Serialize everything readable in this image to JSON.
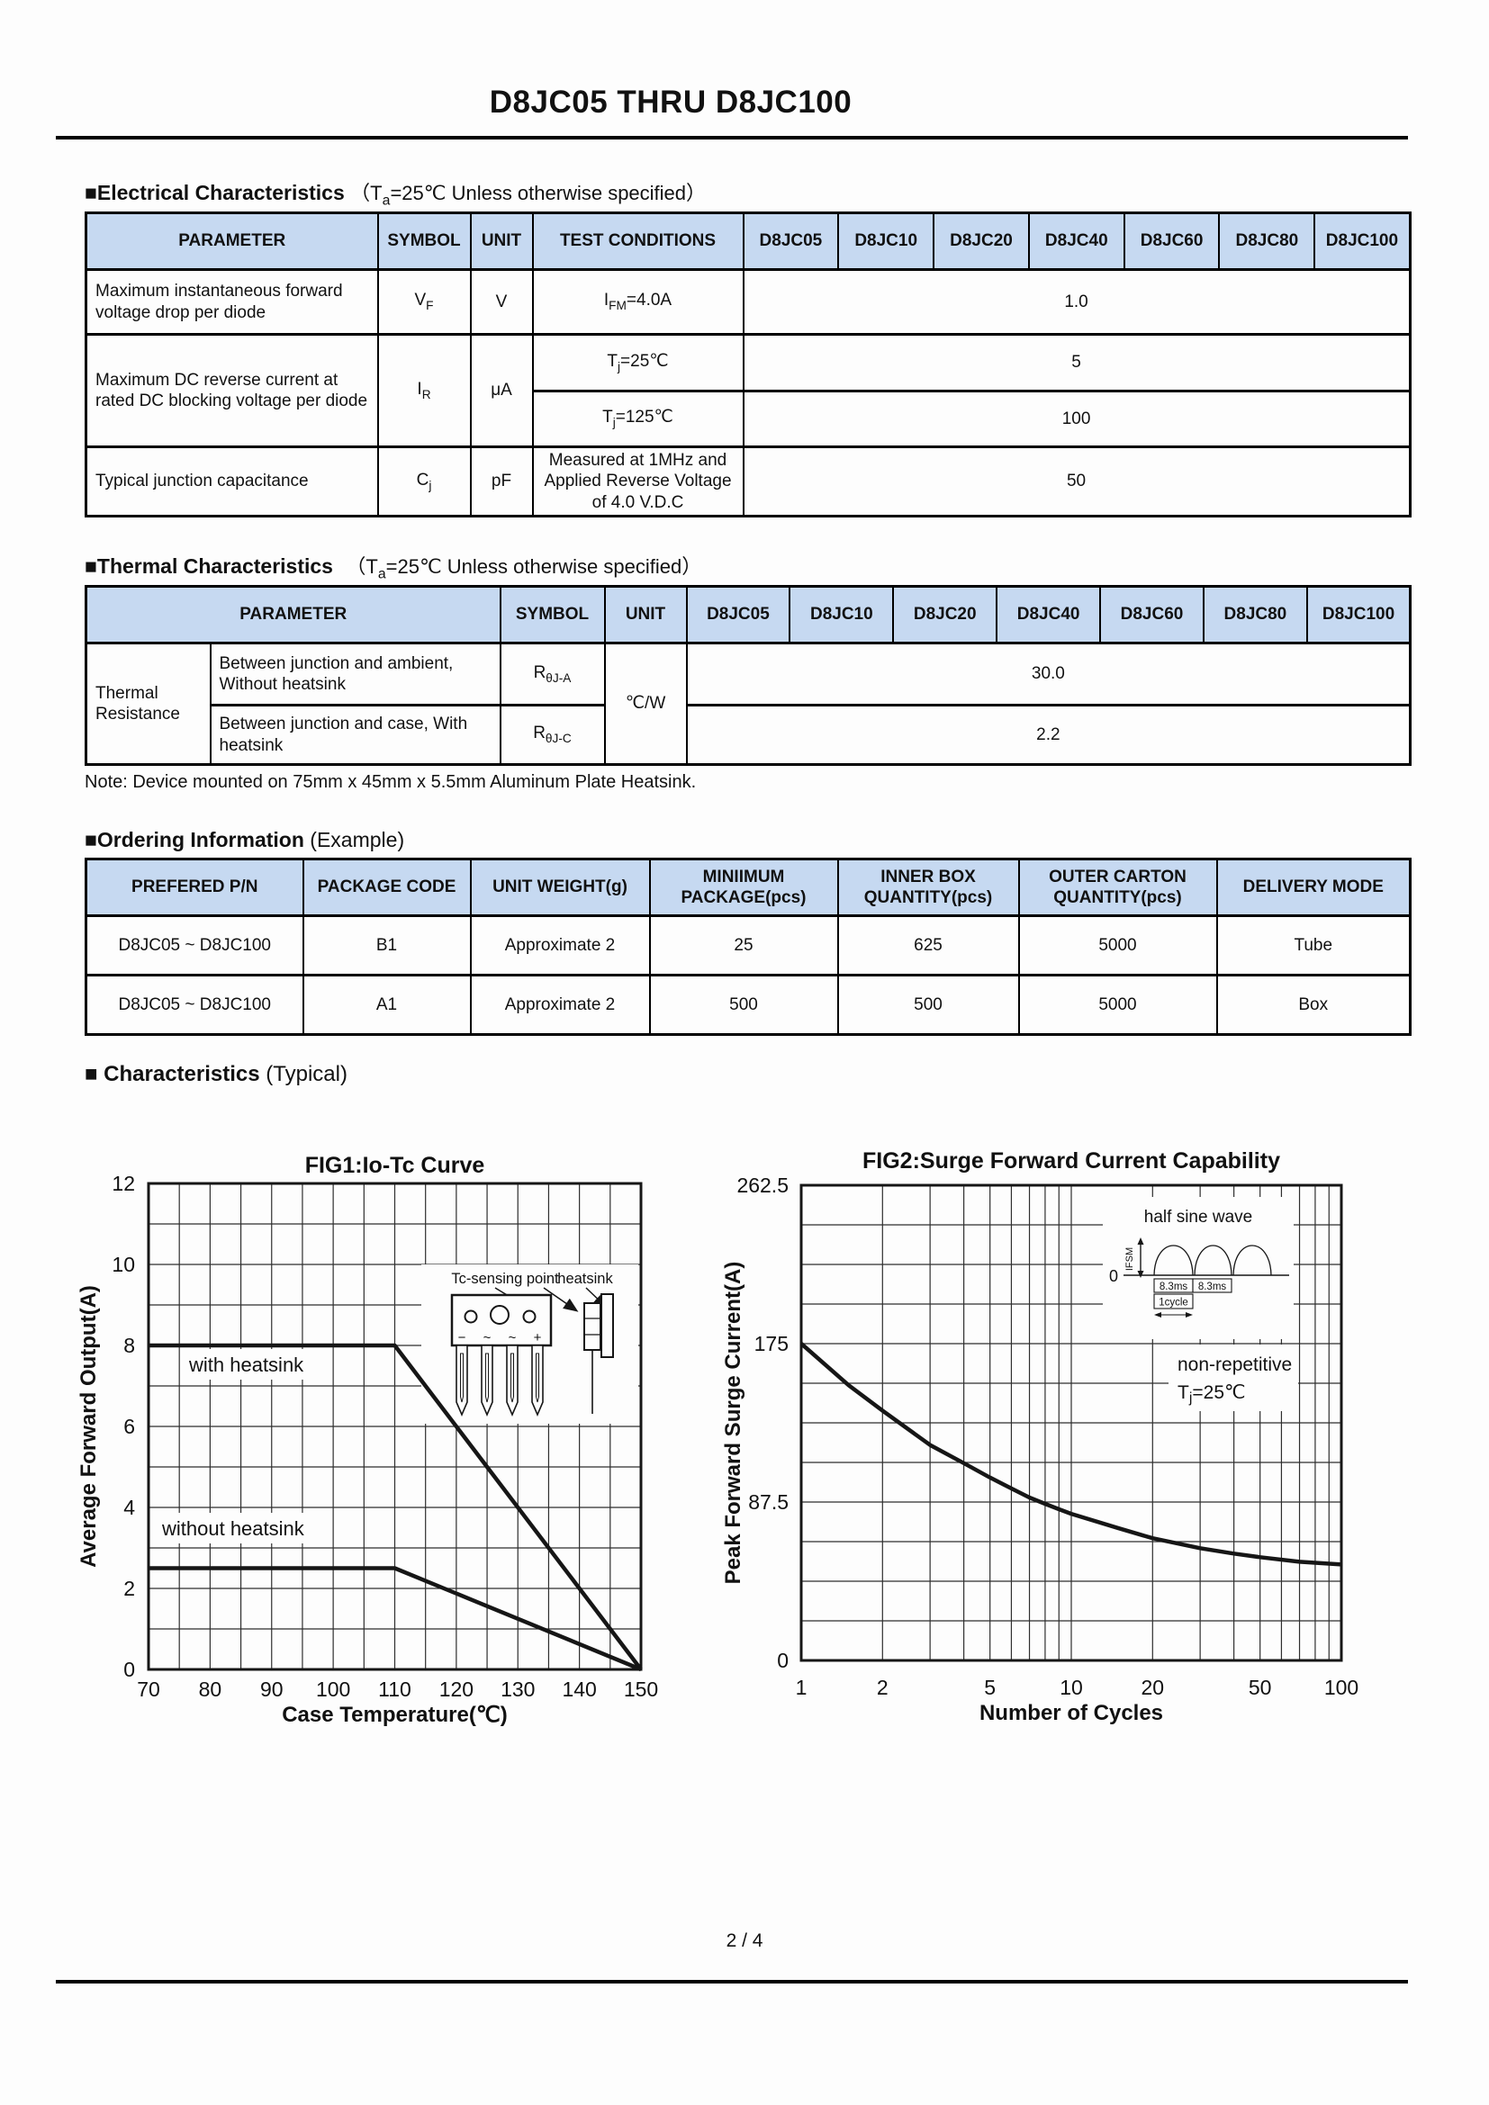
{
  "page": {
    "title": "D8JC05 THRU D8JC100",
    "footer": "2 / 4"
  },
  "colors": {
    "table_header_fill": "#c6d9f1",
    "ink": "#161616",
    "grid": "#2e2e2e"
  },
  "sections": {
    "electrical": {
      "heading_bold": "■Electrical Characteristics",
      "cond_pre": "（T",
      "cond_sub": "a",
      "cond_post": "=25℃ Unless otherwise specified）"
    },
    "thermal": {
      "heading_bold": "■Thermal Characteristics",
      "cond_pre": "（T",
      "cond_sub": "a",
      "cond_post": "=25℃ Unless otherwise specified）"
    },
    "ordering": {
      "heading_bold": "■Ordering Information",
      "heading_rest": " (Example)"
    },
    "characteristics": {
      "heading_bold": "■ Characteristics",
      "heading_rest": " (Typical)"
    }
  },
  "elec_table": {
    "headers": [
      "PARAMETER",
      "SYMBOL",
      "UNIT",
      "TEST CONDITIONS",
      "D8JC05",
      "D8JC10",
      "D8JC20",
      "D8JC40",
      "D8JC60",
      "D8JC80",
      "D8JC100"
    ],
    "row_vf": {
      "param": "Maximum instantaneous forward voltage drop per diode",
      "sym_pre": "V",
      "sym_sub": "F",
      "unit": "V",
      "cond_pre": "I",
      "cond_sub": "FM",
      "cond_post": "=4.0A",
      "value": "1.0"
    },
    "row_ir": {
      "param": "Maximum DC reverse current at rated DC blocking voltage per diode",
      "sym_pre": "I",
      "sym_sub": "R",
      "unit": "μA",
      "cond1_pre": "T",
      "cond1_sub": "j",
      "cond1_post": "=25℃",
      "value1": "5",
      "cond2_pre": "T",
      "cond2_sub": "j",
      "cond2_post": "=125℃",
      "value2": "100"
    },
    "row_cj": {
      "param": "Typical junction capacitance",
      "sym_pre": "C",
      "sym_sub": "j",
      "unit": "pF",
      "cond": "Measured at 1MHz and Applied Reverse Voltage of 4.0 V.D.C",
      "value": "50"
    }
  },
  "thermal_table": {
    "headers": [
      "PARAMETER",
      "SYMBOL",
      "UNIT",
      "D8JC05",
      "D8JC10",
      "D8JC20",
      "D8JC40",
      "D8JC60",
      "D8JC80",
      "D8JC100"
    ],
    "group": "Thermal Resistance",
    "unit": "℃/W",
    "row1": {
      "param": "Between junction and ambient, Without heatsink",
      "sym_pre": "R",
      "sym_sub": "θJ-A",
      "value": "30.0"
    },
    "row2": {
      "param": "Between junction and case, With heatsink",
      "sym_pre": "R",
      "sym_sub": "θJ-C",
      "value": "2.2"
    },
    "note": "Note: Device mounted on 75mm x 45mm x 5.5mm Aluminum Plate Heatsink."
  },
  "ordering_table": {
    "headers": [
      "PREFERED P/N",
      "PACKAGE CODE",
      "UNIT WEIGHT(g)",
      "MINIIMUM PACKAGE(pcs)",
      "INNER BOX QUANTITY(pcs)",
      "OUTER CARTON QUANTITY(pcs)",
      "DELIVERY MODE"
    ],
    "rows": [
      [
        "D8JC05 ~ D8JC100",
        "B1",
        "Approximate 2",
        "25",
        "625",
        "5000",
        "Tube"
      ],
      [
        "D8JC05 ~ D8JC100",
        "A1",
        "Approximate 2",
        "500",
        "500",
        "5000",
        "Box"
      ]
    ]
  },
  "chart_data": [
    {
      "type": "line",
      "title": "FIG1:Io-Tc Curve",
      "xlabel": "Case Temperature(℃)",
      "ylabel": "Average Forward Output(A)",
      "x_min": 70,
      "x_max": 150,
      "x_grid_step": 5,
      "y_min": 0,
      "y_max": 12,
      "y_grid_step": 1,
      "x_tick_labels": [
        70,
        80,
        90,
        100,
        110,
        120,
        130,
        140,
        150
      ],
      "y_tick_labels": [
        0,
        2,
        4,
        6,
        8,
        10,
        12
      ],
      "grid": "on",
      "series": [
        {
          "name": "with heatsink",
          "points": [
            [
              70,
              8
            ],
            [
              110,
              8
            ],
            [
              150,
              0
            ]
          ]
        },
        {
          "name": "without heatsink",
          "points": [
            [
              70,
              2.5
            ],
            [
              110,
              2.5
            ],
            [
              150,
              0
            ]
          ]
        }
      ],
      "series_labels": [
        {
          "text": "with heatsink"
        },
        {
          "text": "without heatsink"
        }
      ],
      "inset": {
        "tc_label": "Tc-sensing point",
        "hs_label": "heatsink",
        "pin_minus": "−",
        "pin_ac1": "~",
        "pin_ac2": "~",
        "pin_plus": "+"
      }
    },
    {
      "type": "line",
      "title": "FIG2:Surge Forward Current Capability",
      "xlabel": "Number of Cycles",
      "ylabel": "Peak Forward Surge Current(A)",
      "x_scale": "log",
      "x_min": 1,
      "x_max": 100,
      "x_gridlines": [
        1,
        2,
        3,
        4,
        5,
        6,
        7,
        8,
        9,
        10,
        20,
        30,
        40,
        50,
        60,
        70,
        80,
        90,
        100
      ],
      "x_tick_labels": [
        1,
        2,
        5,
        10,
        20,
        50,
        100
      ],
      "y_min": 0,
      "y_max": 262.5,
      "y_grid_step": 21.875,
      "y_tick_labels": [
        0,
        87.5,
        175,
        262.5
      ],
      "grid": "on",
      "series": [
        {
          "name": "surge current",
          "points": [
            [
              1,
              175
            ],
            [
              1.5,
              152
            ],
            [
              2,
              138
            ],
            [
              3,
              119
            ],
            [
              4,
              109
            ],
            [
              5,
              101
            ],
            [
              6,
              95
            ],
            [
              7,
              90
            ],
            [
              8,
              86.5
            ],
            [
              9,
              83.5
            ],
            [
              10,
              81
            ],
            [
              15,
              73
            ],
            [
              20,
              67.5
            ],
            [
              30,
              62
            ],
            [
              40,
              59
            ],
            [
              50,
              57
            ],
            [
              70,
              54.5
            ],
            [
              100,
              53
            ]
          ]
        }
      ],
      "annotation": {
        "line1": "non-repetitive",
        "line2_pre": "T",
        "line2_sub": "j",
        "line2_post": "=25℃"
      },
      "inset": {
        "title": "half sine wave",
        "ifsm": "IFSM",
        "zero": "0",
        "ms1": "8.3ms",
        "ms2": "8.3ms",
        "cycle": "1cycle"
      }
    }
  ]
}
